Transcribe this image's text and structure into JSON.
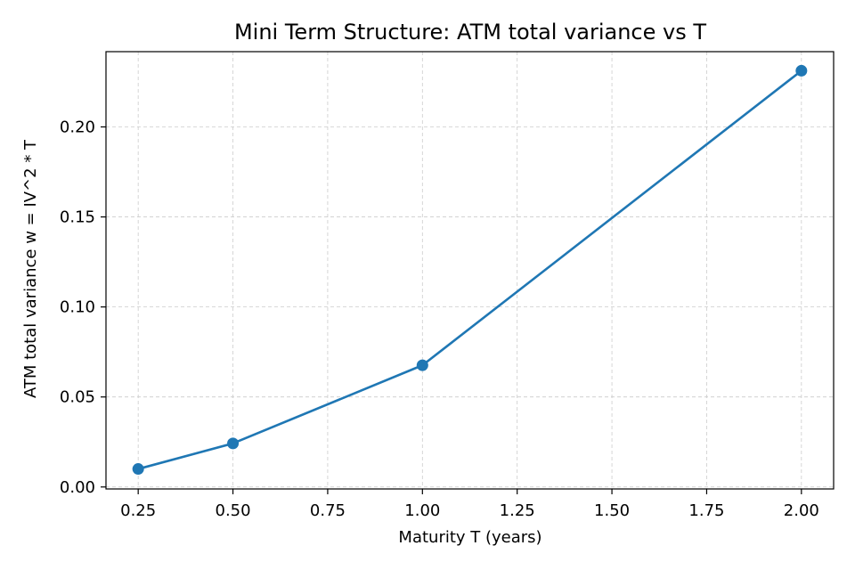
{
  "chart_data": {
    "type": "line",
    "title": "Mini Term Structure: ATM total variance vs T",
    "xlabel": "Maturity T (years)",
    "ylabel": "ATM total variance w = IV^2 * T",
    "xlim": [
      0.165,
      2.085
    ],
    "ylim": [
      -0.0011,
      0.2418
    ],
    "x_ticks": [
      0.25,
      0.5,
      0.75,
      1.0,
      1.25,
      1.5,
      1.75,
      2.0
    ],
    "x_tick_labels": [
      "0.25",
      "0.50",
      "0.75",
      "1.00",
      "1.25",
      "1.50",
      "1.75",
      "2.00"
    ],
    "y_ticks": [
      0.0,
      0.05,
      0.1,
      0.15,
      0.2
    ],
    "y_tick_labels": [
      "0.00",
      "0.05",
      "0.10",
      "0.15",
      "0.20"
    ],
    "grid": true,
    "series": [
      {
        "x": [
          0.25,
          0.5,
          1.0,
          2.0
        ],
        "y": [
          0.01,
          0.0242,
          0.0676,
          0.2312
        ],
        "color": "#1f77b4",
        "marker": "circle"
      }
    ]
  }
}
